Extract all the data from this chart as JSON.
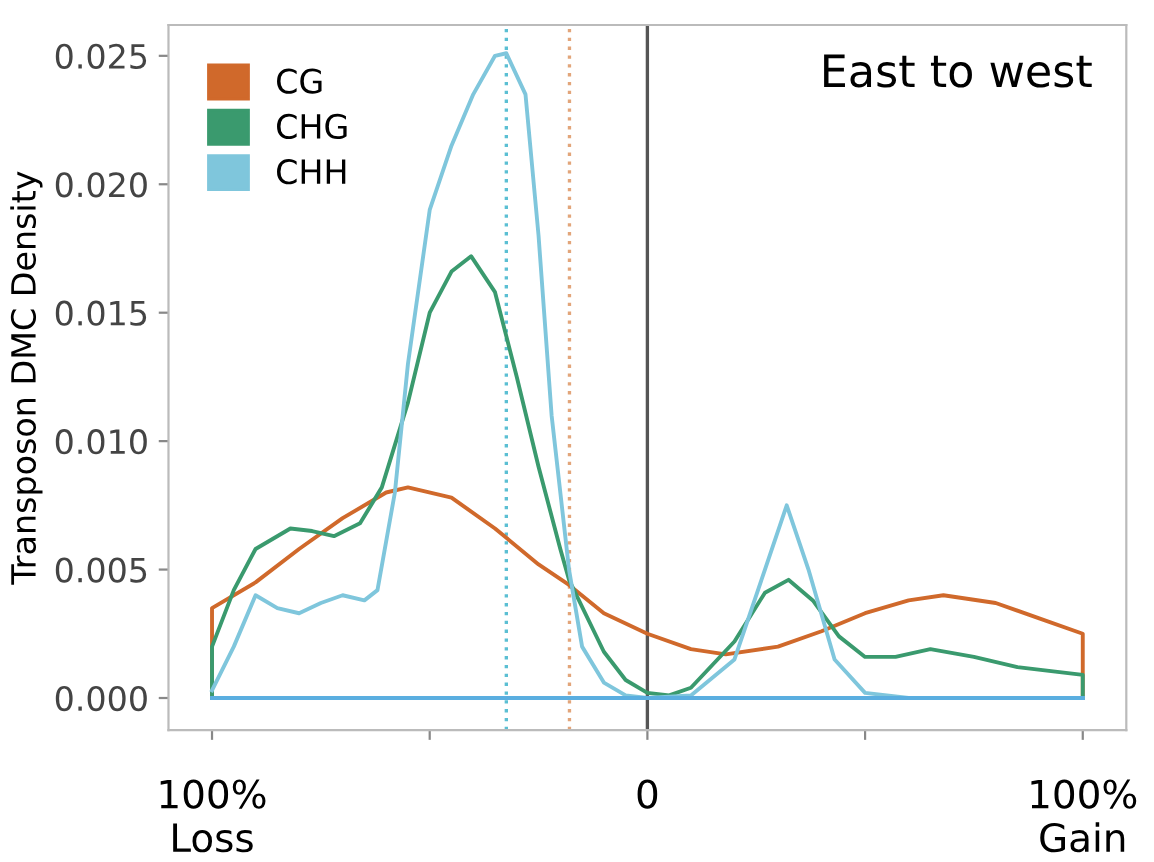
{
  "chart_data": {
    "type": "line",
    "ylabel": "Transposon DMC Density",
    "annotations": [
      "East to west"
    ],
    "xlim": [
      -110,
      110
    ],
    "ylim": [
      -0.00125,
      0.0262
    ],
    "xticks": [
      {
        "value": -100,
        "label": "100%\nLoss"
      },
      {
        "value": -50,
        "label": null
      },
      {
        "value": 0,
        "label": "0"
      },
      {
        "value": 50,
        "label": null
      },
      {
        "value": 100,
        "label": "100%\nGain"
      }
    ],
    "yticks": [
      {
        "value": 0,
        "label": "0.000"
      },
      {
        "value": 0.005,
        "label": "0.005"
      },
      {
        "value": 0.01,
        "label": "0.010"
      },
      {
        "value": 0.015,
        "label": "0.015"
      },
      {
        "value": 0.02,
        "label": "0.020"
      },
      {
        "value": 0.025,
        "label": "0.025"
      }
    ],
    "grid": false,
    "legend": "top left",
    "marker": "none",
    "line_style": "solid",
    "ref_lines": [
      {
        "axis": "x",
        "value": 0,
        "color": "#555555",
        "line_style": "solid"
      },
      {
        "axis": "x",
        "value": -32.4,
        "color": "#5bbfd3",
        "line_style": "dotted"
      },
      {
        "axis": "x",
        "value": -17.9,
        "color": "#e2a57a",
        "line_style": "dotted"
      }
    ],
    "series": [
      {
        "name": "CG",
        "color": "#d0692b",
        "x": [
          -100,
          -100,
          -90,
          -80,
          -70,
          -60,
          -55,
          -45,
          -35,
          -25,
          -18,
          -10,
          0,
          10,
          18,
          30,
          40,
          50,
          60,
          68,
          80,
          90,
          100,
          100
        ],
        "values": [
          0,
          0.0035,
          0.0045,
          0.0058,
          0.007,
          0.008,
          0.0082,
          0.0078,
          0.0066,
          0.0052,
          0.0044,
          0.0033,
          0.0025,
          0.0019,
          0.0017,
          0.002,
          0.0026,
          0.0033,
          0.0038,
          0.004,
          0.0037,
          0.0031,
          0.0025,
          0
        ]
      },
      {
        "name": "CHG",
        "color": "#3a9a6e",
        "x": [
          -100,
          -100,
          -95,
          -90,
          -82,
          -77,
          -72,
          -66,
          -61,
          -55,
          -50,
          -45,
          -40.5,
          -35,
          -30,
          -25,
          -20,
          -18,
          -10,
          -5,
          0,
          5,
          10,
          20,
          27,
          32.4,
          38,
          44,
          50,
          57,
          65,
          75,
          85,
          100,
          100
        ],
        "values": [
          0,
          0.002,
          0.0042,
          0.0058,
          0.0066,
          0.0065,
          0.0063,
          0.0068,
          0.0082,
          0.0115,
          0.015,
          0.0166,
          0.0172,
          0.0158,
          0.0125,
          0.009,
          0.0058,
          0.0046,
          0.0018,
          0.0007,
          0.0002,
          0.0001,
          0.0004,
          0.0022,
          0.0041,
          0.0046,
          0.0038,
          0.0024,
          0.0016,
          0.0016,
          0.0019,
          0.0016,
          0.0012,
          0.0009,
          0
        ]
      },
      {
        "name": "CHH",
        "color": "#7fc6dc",
        "x": [
          -100,
          -95,
          -90,
          -85,
          -80,
          -75,
          -70,
          -65,
          -62,
          -58,
          -55,
          -50,
          -45,
          -40,
          -35,
          -32.4,
          -28,
          -25,
          -22,
          -18,
          -15,
          -10,
          -5,
          0,
          10,
          20,
          27,
          32,
          37,
          43,
          50,
          60,
          100
        ],
        "values": [
          0.0003,
          0.002,
          0.004,
          0.0035,
          0.0033,
          0.0037,
          0.004,
          0.0038,
          0.0042,
          0.008,
          0.013,
          0.019,
          0.0215,
          0.0235,
          0.025,
          0.0251,
          0.0235,
          0.018,
          0.011,
          0.005,
          0.002,
          0.0006,
          0.0001,
          0,
          0.0001,
          0.0015,
          0.005,
          0.0075,
          0.005,
          0.0015,
          0.0002,
          0,
          0
        ]
      },
      {
        "color": "#5aaee0",
        "x": [
          -100,
          100
        ],
        "values": [
          0,
          0
        ]
      }
    ]
  }
}
